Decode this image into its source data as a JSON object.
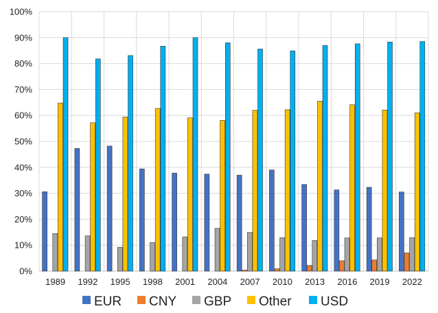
{
  "chart_data": {
    "type": "bar",
    "title": "",
    "xlabel": "",
    "ylabel": "",
    "ylim": [
      0,
      100
    ],
    "yticks": [
      "0%",
      "10%",
      "20%",
      "30%",
      "40%",
      "50%",
      "60%",
      "70%",
      "80%",
      "90%",
      "100%"
    ],
    "grid": true,
    "legend_position": "bottom",
    "categories": [
      "1989",
      "1992",
      "1995",
      "1998",
      "2001",
      "2004",
      "2007",
      "2010",
      "2013",
      "2016",
      "2019",
      "2022"
    ],
    "series": [
      {
        "name": "EUR",
        "color": "#4472C4",
        "values": [
          30.6,
          47.3,
          48.2,
          39.4,
          37.8,
          37.4,
          37.0,
          39.0,
          33.4,
          31.3,
          32.3,
          30.5
        ]
      },
      {
        "name": "CNY",
        "color": "#ED7D31",
        "values": [
          0,
          0,
          0,
          0,
          0,
          0,
          0.4,
          0.9,
          2.2,
          4.0,
          4.3,
          7.0
        ]
      },
      {
        "name": "GBP",
        "color": "#A5A5A5",
        "values": [
          14.5,
          13.6,
          9.2,
          11.0,
          13.2,
          16.5,
          14.9,
          12.9,
          11.8,
          12.8,
          12.8,
          12.9
        ]
      },
      {
        "name": "Other",
        "color": "#FFC000",
        "values": [
          64.8,
          57.2,
          59.4,
          62.7,
          59.1,
          58.1,
          62.0,
          62.2,
          65.5,
          64.1,
          62.1,
          61.0
        ]
      },
      {
        "name": "USD",
        "color": "#00B0F0",
        "values": [
          90.0,
          81.8,
          83.1,
          86.7,
          90.0,
          88.0,
          85.6,
          84.9,
          87.0,
          87.6,
          88.3,
          88.5
        ]
      }
    ]
  }
}
